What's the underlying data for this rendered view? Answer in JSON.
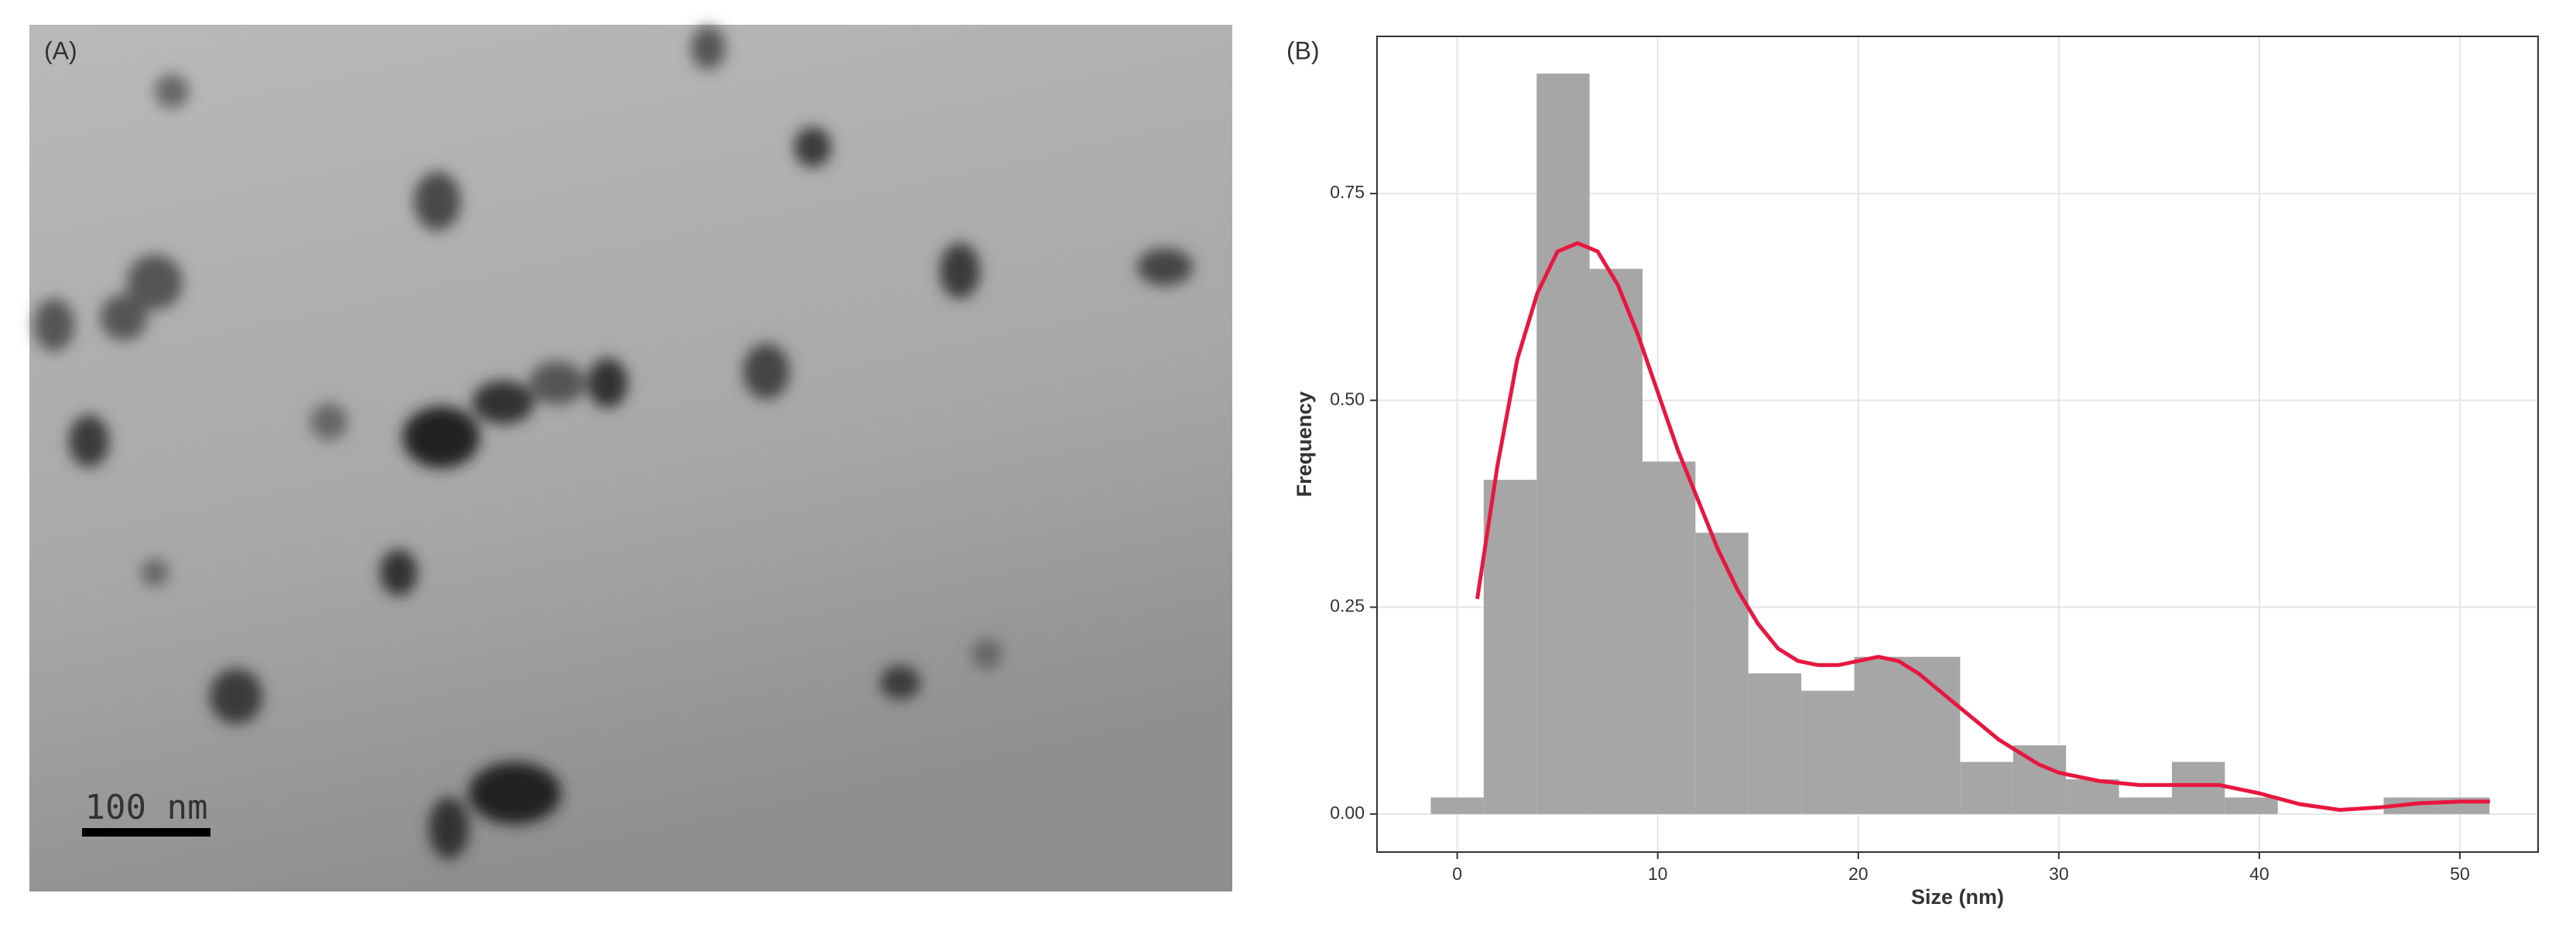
{
  "panel_a": {
    "label": "(A)",
    "scale_bar": "100 nm"
  },
  "chart_data": {
    "type": "histogram",
    "panel_label": "(B)",
    "x_label": "Size (nm)",
    "y_label": "Frequency",
    "bins": [
      -1.32,
      1.32,
      3.96,
      6.6,
      9.24,
      11.88,
      14.52,
      17.16,
      19.8,
      22.44,
      25.08,
      27.72,
      30.36,
      33.0,
      35.64,
      38.28,
      40.92,
      43.56,
      46.2,
      48.84,
      51.48
    ],
    "values": [
      0.02,
      0.404,
      0.895,
      0.659,
      0.426,
      0.34,
      0.17,
      0.149,
      0.19,
      0.19,
      0.063,
      0.083,
      0.042,
      0.02,
      0.063,
      0.02,
      0,
      0,
      0.02,
      0.02
    ],
    "color": "#a6a6a6",
    "density": {
      "color": "#e8173f",
      "x": [
        1,
        2,
        3,
        4,
        5,
        6,
        7,
        8,
        9,
        10,
        11,
        12,
        13,
        14,
        15,
        16,
        17,
        18,
        19,
        20,
        21,
        22,
        23,
        24,
        25,
        26,
        27,
        28,
        29,
        30,
        32,
        34,
        36,
        38,
        40,
        42,
        44,
        46,
        48,
        50,
        51.5
      ],
      "values": [
        0.26,
        0.42,
        0.55,
        0.63,
        0.68,
        0.69,
        0.68,
        0.64,
        0.58,
        0.51,
        0.44,
        0.38,
        0.32,
        0.27,
        0.23,
        0.2,
        0.185,
        0.18,
        0.18,
        0.185,
        0.19,
        0.185,
        0.17,
        0.15,
        0.13,
        0.11,
        0.09,
        0.075,
        0.06,
        0.05,
        0.04,
        0.035,
        0.035,
        0.035,
        0.025,
        0.012,
        0.005,
        0.008,
        0.013,
        0.015,
        0.015
      ]
    },
    "xlim": [
      -4.0,
      53.9
    ],
    "ylim": [
      -0.046,
      0.94
    ],
    "xticks": [
      0,
      10,
      20,
      30,
      40,
      50
    ],
    "yticks": [
      {
        "value": 0,
        "label": "0.00"
      },
      0.25,
      {
        "value": 0.5,
        "label": "0.50"
      },
      0.75
    ],
    "grid": true
  }
}
